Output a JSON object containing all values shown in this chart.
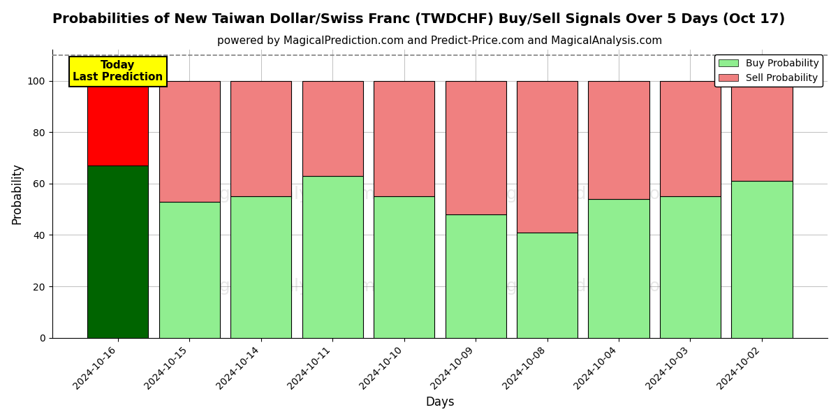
{
  "title": "Probabilities of New Taiwan Dollar/Swiss Franc (TWDCHF) Buy/Sell Signals Over 5 Days (Oct 17)",
  "subtitle": "powered by MagicalPrediction.com and Predict-Price.com and MagicalAnalysis.com",
  "xlabel": "Days",
  "ylabel": "Probability",
  "dates": [
    "2024-10-16",
    "2024-10-15",
    "2024-10-14",
    "2024-10-11",
    "2024-10-10",
    "2024-10-09",
    "2024-10-08",
    "2024-10-04",
    "2024-10-03",
    "2024-10-02"
  ],
  "buy_values": [
    67,
    53,
    55,
    63,
    55,
    48,
    41,
    54,
    55,
    61
  ],
  "sell_values": [
    33,
    47,
    45,
    37,
    45,
    52,
    59,
    46,
    45,
    39
  ],
  "today_buy_color": "#006400",
  "today_sell_color": "#FF0000",
  "buy_color": "#90EE90",
  "sell_color": "#F08080",
  "today_annotation_text": "Today\nLast Prediction",
  "today_annotation_bg": "#FFFF00",
  "legend_buy_label": "Buy Probability",
  "legend_sell_label": "Sell Probability",
  "ylim": [
    0,
    112
  ],
  "dashed_line_y": 110,
  "background_color": "#ffffff",
  "plot_bg_color": "#ffffff",
  "watermark_alpha": 0.18,
  "title_fontsize": 14,
  "subtitle_fontsize": 11,
  "axis_label_fontsize": 12,
  "tick_fontsize": 10,
  "bar_width": 0.85
}
